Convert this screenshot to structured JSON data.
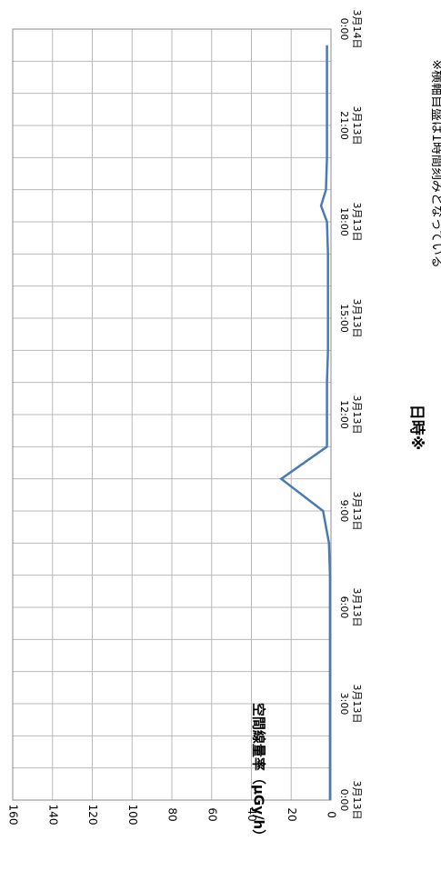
{
  "chart_data": {
    "type": "line",
    "orientation": "rotated-90-clockwise",
    "xlabel": "日時※",
    "ylabel": "空間線量率（μGy/h）",
    "footnote": "※横軸目盛は1時間刻みとなっている",
    "ylim": [
      0,
      160
    ],
    "y_ticks": [
      0,
      20,
      40,
      60,
      80,
      100,
      120,
      140,
      160
    ],
    "x_ticks": [
      {
        "value": "2011-03-13 00:00",
        "line1": "3月13日",
        "line2": "0:00"
      },
      {
        "value": "2011-03-13 03:00",
        "line1": "3月13日",
        "line2": "3:00"
      },
      {
        "value": "2011-03-13 06:00",
        "line1": "3月13日",
        "line2": "6:00"
      },
      {
        "value": "2011-03-13 09:00",
        "line1": "3月13日",
        "line2": "9:00"
      },
      {
        "value": "2011-03-13 12:00",
        "line1": "3月13日",
        "line2": "12:00"
      },
      {
        "value": "2011-03-13 15:00",
        "line1": "3月13日",
        "line2": "15:00"
      },
      {
        "value": "2011-03-13 18:00",
        "line1": "3月13日",
        "line2": "18:00"
      },
      {
        "value": "2011-03-13 21:00",
        "line1": "3月13日",
        "line2": "21:00"
      },
      {
        "value": "2011-03-14 00:00",
        "line1": "3月14日",
        "line2": "0:00"
      }
    ],
    "grid": true,
    "series_color": "#4a7ab5",
    "points": [
      {
        "x": "2011-03-13 00:00",
        "y": 0.5
      },
      {
        "x": "2011-03-13 01:00",
        "y": 0.5
      },
      {
        "x": "2011-03-13 02:00",
        "y": 0.5
      },
      {
        "x": "2011-03-13 03:00",
        "y": 0.5
      },
      {
        "x": "2011-03-13 04:00",
        "y": 0.5
      },
      {
        "x": "2011-03-13 05:00",
        "y": 0.5
      },
      {
        "x": "2011-03-13 06:00",
        "y": 0.5
      },
      {
        "x": "2011-03-13 07:00",
        "y": 0.5
      },
      {
        "x": "2011-03-13 08:00",
        "y": 1
      },
      {
        "x": "2011-03-13 09:00",
        "y": 4
      },
      {
        "x": "2011-03-13 10:00",
        "y": 25
      },
      {
        "x": "2011-03-13 11:00",
        "y": 2
      },
      {
        "x": "2011-03-13 12:00",
        "y": 2
      },
      {
        "x": "2011-03-13 13:00",
        "y": 2
      },
      {
        "x": "2011-03-13 14:00",
        "y": 1.5
      },
      {
        "x": "2011-03-13 15:00",
        "y": 1.5
      },
      {
        "x": "2011-03-13 16:00",
        "y": 1.5
      },
      {
        "x": "2011-03-13 17:00",
        "y": 1.5
      },
      {
        "x": "2011-03-13 18:00",
        "y": 2
      },
      {
        "x": "2011-03-13 18:30",
        "y": 5
      },
      {
        "x": "2011-03-13 19:00",
        "y": 2.5
      },
      {
        "x": "2011-03-13 20:00",
        "y": 2
      },
      {
        "x": "2011-03-13 21:00",
        "y": 2
      },
      {
        "x": "2011-03-13 22:00",
        "y": 2
      },
      {
        "x": "2011-03-13 23:00",
        "y": 2
      },
      {
        "x": "2011-03-13 23:30",
        "y": 2
      }
    ]
  }
}
